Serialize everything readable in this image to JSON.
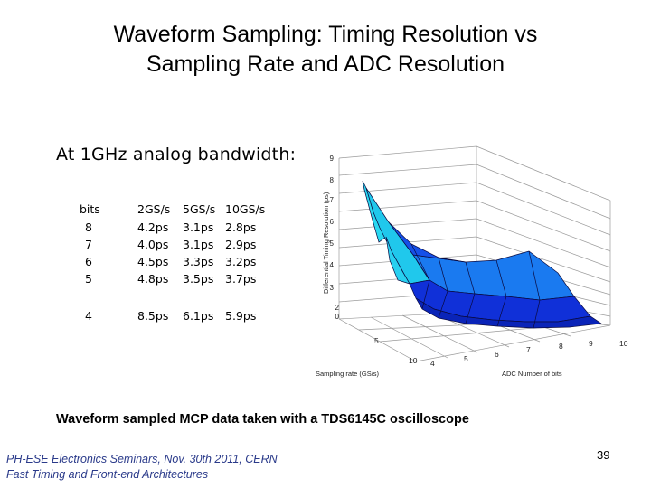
{
  "slide": {
    "title_line1": "Waveform Sampling: Timing Resolution vs",
    "title_line2": "Sampling Rate and ADC Resolution",
    "subheading": "At 1GHz analog bandwidth:",
    "caption": "Waveform sampled MCP data taken with a TDS6145C oscilloscope",
    "footer_line1": "PH-ESE Electronics Seminars,  Nov. 30th 2011, CERN",
    "footer_line2": "Fast Timing and Front-end Architectures",
    "page_number": "39"
  },
  "table": {
    "headers": [
      "bits",
      "2GS/s",
      "5GS/s",
      "10GS/s"
    ],
    "rows": [
      [
        "8",
        "4.2ps",
        "3.1ps",
        "2.8ps"
      ],
      [
        "7",
        "4.0ps",
        "3.1ps",
        "2.9ps"
      ],
      [
        "6",
        "4.5ps",
        "3.3ps",
        "3.2ps"
      ],
      [
        "5",
        "4.8ps",
        "3.5ps",
        "3.7ps"
      ],
      [
        "4",
        "8.5ps",
        "6.1ps",
        "5.9ps"
      ]
    ]
  },
  "chart_data": {
    "type": "surface3d",
    "zlabel": "Differential Timing Resolution (ps)",
    "xlabel": "Sampling rate (GS/s)",
    "ylabel": "ADC Number of bits",
    "zlim": [
      0,
      9
    ],
    "z_ticks": [
      "0",
      "2",
      "3",
      "4",
      "5",
      "6",
      "7",
      "8",
      "9"
    ],
    "x_ticks": [
      "5",
      "10"
    ],
    "y_ticks": [
      "4",
      "5",
      "6",
      "7",
      "8",
      "9",
      "10"
    ],
    "colors": {
      "high": "#28d8f0",
      "mid": "#1a6cf0",
      "low": "#1030d8",
      "edge": "#0a0a40",
      "grid": "#9a9a9a"
    }
  }
}
